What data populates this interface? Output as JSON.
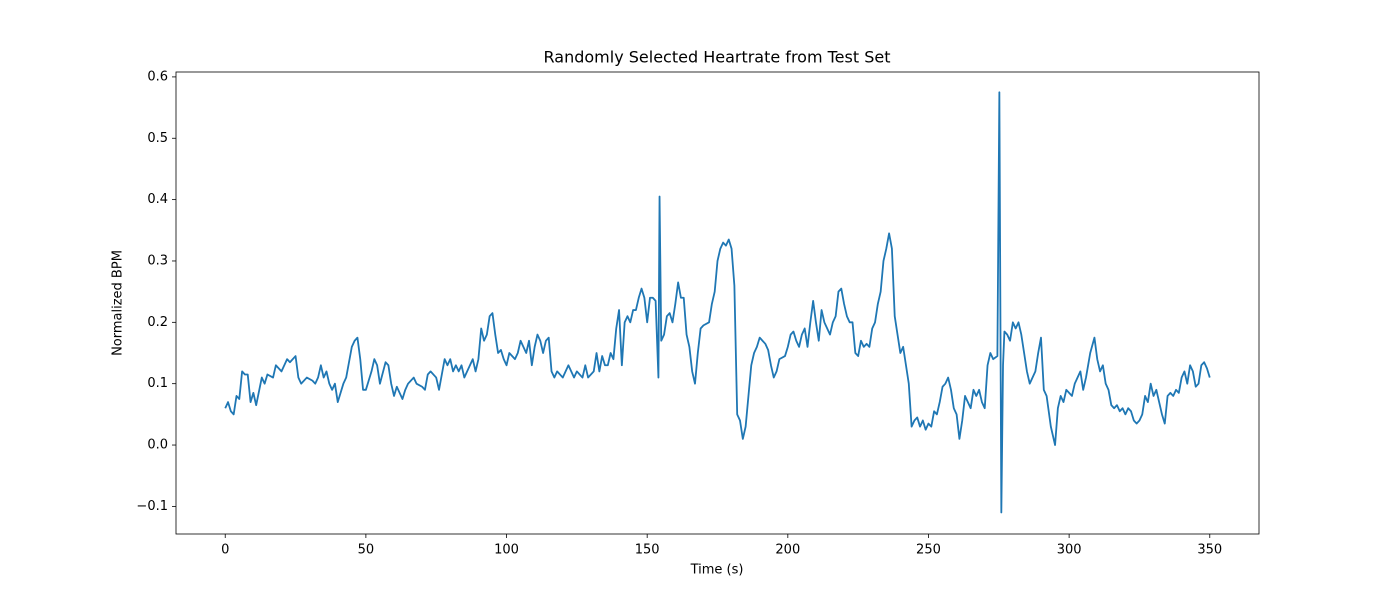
{
  "chart_data": {
    "type": "line",
    "title": "Randomly Selected Heartrate from Test Set",
    "x_label": "Time (s)",
    "y_label": "Normalized BPM",
    "color": "#1f77b4",
    "xlim": [
      -17.5,
      367.5
    ],
    "ylim": [
      -0.145,
      0.608
    ],
    "xticks": [
      0,
      50,
      100,
      150,
      200,
      250,
      300,
      350
    ],
    "yticks": [
      {
        "value": -0.1,
        "label": "−0.1"
      },
      {
        "value": 0,
        "label": "0.0"
      },
      0.1,
      0.2,
      0.3,
      0.4,
      0.5,
      0.6
    ],
    "x": [
      0,
      1,
      2,
      3,
      4,
      5,
      6,
      7,
      8,
      9,
      10,
      11,
      13,
      14,
      15,
      17,
      18,
      20,
      22,
      23,
      25,
      26,
      27,
      29,
      31,
      32,
      33,
      34,
      35,
      36,
      37,
      38,
      39,
      40,
      42,
      43,
      45,
      46,
      47,
      48,
      49,
      50,
      52,
      53,
      54,
      55,
      57,
      58,
      59,
      60,
      61,
      62,
      63,
      64,
      65,
      67,
      68,
      70,
      71,
      72,
      73,
      75,
      76,
      78,
      79,
      80,
      81,
      82,
      83,
      84,
      85,
      86,
      87,
      88,
      89,
      90,
      91,
      92,
      93,
      94,
      95,
      96,
      97,
      98,
      99,
      100,
      101,
      103,
      104,
      105,
      106,
      107,
      108,
      109,
      110,
      111,
      112,
      113,
      114,
      115,
      116,
      117,
      118,
      120,
      121,
      122,
      124,
      125,
      127,
      128,
      129,
      131,
      132,
      133,
      134,
      135,
      136,
      137,
      138,
      139,
      140,
      141,
      142,
      143,
      144,
      145,
      146,
      147,
      148,
      149,
      150,
      151,
      152,
      153,
      154,
      154.4,
      155,
      156,
      157,
      158,
      159,
      160,
      161,
      162,
      163,
      164,
      165,
      166,
      167,
      168,
      169,
      170,
      172,
      173,
      174,
      175,
      176,
      177,
      178,
      179,
      180,
      181,
      182,
      183,
      184,
      185,
      186,
      187,
      188,
      189,
      190,
      191,
      192,
      193,
      194,
      195,
      196,
      197,
      199,
      200,
      201,
      202,
      203,
      204,
      205,
      206,
      207,
      208,
      209,
      210,
      211,
      212,
      213,
      214,
      215,
      216,
      217,
      218,
      219,
      220,
      221,
      222,
      223,
      224,
      225,
      226,
      227,
      228,
      229,
      230,
      231,
      232,
      233,
      234,
      235,
      236,
      237,
      238,
      239,
      240,
      241,
      242,
      243,
      244,
      245,
      246,
      247,
      248,
      249,
      250,
      251,
      252,
      253,
      254,
      255,
      256,
      257,
      258,
      259,
      260,
      261,
      262,
      263,
      264,
      265,
      266,
      267,
      268,
      269,
      270,
      271,
      272,
      273,
      274.5,
      275.2,
      275.9,
      276.5,
      277,
      278,
      279,
      280,
      281,
      282,
      283,
      284,
      285,
      286,
      287,
      288,
      289,
      290,
      291,
      292,
      293.5,
      295,
      296,
      297,
      298,
      299,
      300,
      301,
      302,
      303,
      304,
      305,
      306,
      307.5,
      309,
      310,
      311,
      312,
      313,
      314,
      315,
      316,
      317,
      318,
      319,
      320,
      321,
      322,
      323,
      324,
      325,
      326,
      327,
      328,
      329,
      330,
      331,
      332,
      333,
      334,
      335,
      336,
      337,
      338,
      339,
      340,
      341,
      342,
      343,
      344,
      345,
      346,
      347,
      348,
      349,
      350
    ],
    "values": [
      0.06,
      0.07,
      0.055,
      0.05,
      0.08,
      0.075,
      0.12,
      0.115,
      0.115,
      0.07,
      0.085,
      0.065,
      0.11,
      0.1,
      0.115,
      0.11,
      0.13,
      0.12,
      0.14,
      0.135,
      0.145,
      0.11,
      0.1,
      0.11,
      0.105,
      0.1,
      0.11,
      0.13,
      0.11,
      0.12,
      0.1,
      0.09,
      0.1,
      0.07,
      0.1,
      0.11,
      0.16,
      0.17,
      0.175,
      0.14,
      0.09,
      0.09,
      0.12,
      0.14,
      0.13,
      0.1,
      0.135,
      0.13,
      0.1,
      0.08,
      0.095,
      0.085,
      0.075,
      0.09,
      0.1,
      0.11,
      0.1,
      0.095,
      0.09,
      0.115,
      0.12,
      0.11,
      0.09,
      0.14,
      0.13,
      0.14,
      0.12,
      0.13,
      0.12,
      0.13,
      0.11,
      0.12,
      0.13,
      0.14,
      0.12,
      0.14,
      0.19,
      0.17,
      0.18,
      0.21,
      0.215,
      0.18,
      0.15,
      0.155,
      0.14,
      0.13,
      0.15,
      0.14,
      0.15,
      0.17,
      0.16,
      0.15,
      0.17,
      0.13,
      0.16,
      0.18,
      0.17,
      0.15,
      0.17,
      0.175,
      0.12,
      0.11,
      0.12,
      0.11,
      0.12,
      0.13,
      0.11,
      0.12,
      0.11,
      0.13,
      0.11,
      0.12,
      0.15,
      0.12,
      0.145,
      0.13,
      0.13,
      0.15,
      0.14,
      0.19,
      0.22,
      0.13,
      0.2,
      0.21,
      0.2,
      0.22,
      0.22,
      0.24,
      0.255,
      0.24,
      0.2,
      0.24,
      0.24,
      0.235,
      0.11,
      0.405,
      0.17,
      0.18,
      0.21,
      0.215,
      0.2,
      0.23,
      0.265,
      0.24,
      0.24,
      0.18,
      0.16,
      0.12,
      0.1,
      0.15,
      0.19,
      0.195,
      0.2,
      0.23,
      0.25,
      0.3,
      0.32,
      0.33,
      0.325,
      0.335,
      0.32,
      0.26,
      0.05,
      0.04,
      0.01,
      0.03,
      0.08,
      0.13,
      0.15,
      0.16,
      0.175,
      0.17,
      0.165,
      0.155,
      0.13,
      0.11,
      0.12,
      0.14,
      0.145,
      0.16,
      0.18,
      0.185,
      0.17,
      0.16,
      0.18,
      0.19,
      0.16,
      0.2,
      0.235,
      0.2,
      0.17,
      0.22,
      0.2,
      0.19,
      0.18,
      0.2,
      0.21,
      0.25,
      0.255,
      0.23,
      0.21,
      0.2,
      0.2,
      0.15,
      0.145,
      0.17,
      0.16,
      0.165,
      0.16,
      0.19,
      0.2,
      0.23,
      0.25,
      0.3,
      0.32,
      0.345,
      0.32,
      0.21,
      0.18,
      0.15,
      0.16,
      0.13,
      0.1,
      0.03,
      0.04,
      0.045,
      0.03,
      0.04,
      0.025,
      0.035,
      0.03,
      0.055,
      0.05,
      0.07,
      0.095,
      0.1,
      0.11,
      0.09,
      0.06,
      0.05,
      0.01,
      0.04,
      0.08,
      0.07,
      0.06,
      0.09,
      0.08,
      0.09,
      0.07,
      0.06,
      0.13,
      0.15,
      0.14,
      0.145,
      0.575,
      -0.11,
      0.13,
      0.185,
      0.18,
      0.17,
      0.2,
      0.19,
      0.2,
      0.18,
      0.15,
      0.12,
      0.1,
      0.11,
      0.12,
      0.15,
      0.175,
      0.09,
      0.08,
      0.03,
      0.0,
      0.06,
      0.08,
      0.07,
      0.09,
      0.085,
      0.08,
      0.1,
      0.11,
      0.12,
      0.09,
      0.11,
      0.15,
      0.175,
      0.14,
      0.12,
      0.13,
      0.1,
      0.09,
      0.065,
      0.06,
      0.065,
      0.055,
      0.06,
      0.05,
      0.06,
      0.055,
      0.04,
      0.035,
      0.04,
      0.05,
      0.08,
      0.07,
      0.1,
      0.08,
      0.09,
      0.07,
      0.05,
      0.035,
      0.08,
      0.085,
      0.08,
      0.09,
      0.085,
      0.11,
      0.12,
      0.1,
      0.13,
      0.12,
      0.095,
      0.1,
      0.13,
      0.135,
      0.125,
      0.11
    ]
  }
}
